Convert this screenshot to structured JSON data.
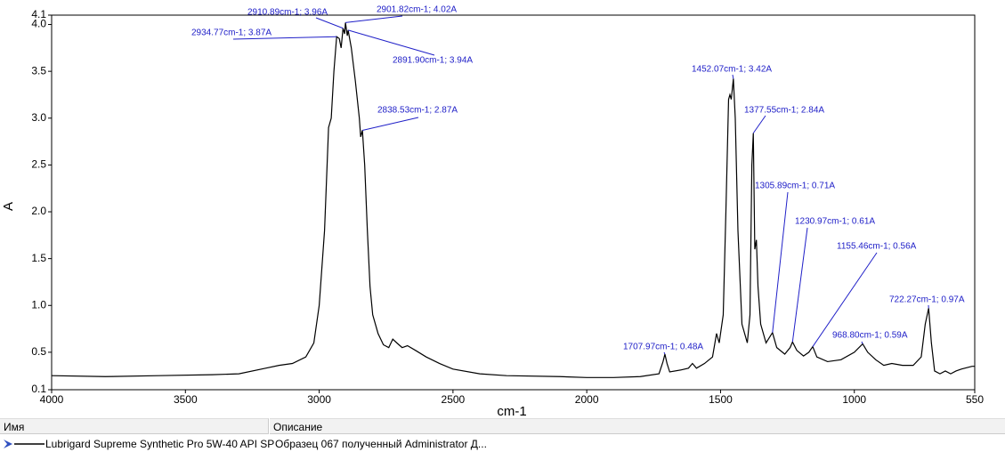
{
  "chart_data": {
    "type": "line",
    "xlabel": "cm-1",
    "ylabel": "A",
    "xlim": [
      4000,
      550
    ],
    "ylim": [
      0.1,
      4.1
    ],
    "xticks": [
      4000,
      3500,
      3000,
      2500,
      2000,
      1500,
      1000,
      550
    ],
    "yticks": [
      0.1,
      0.5,
      {
        "value": 1.0,
        "label": "1.0"
      },
      1.5,
      {
        "value": 2.0,
        "label": "2.0"
      },
      2.5,
      {
        "value": 3.0,
        "label": "3.0"
      },
      3.5,
      {
        "value": 4.0,
        "label": "4.0"
      },
      4.1
    ],
    "x": [
      4000,
      3800,
      3600,
      3400,
      3300,
      3200,
      3150,
      3100,
      3050,
      3020,
      3000,
      2980,
      2965,
      2955,
      2945,
      2934.77,
      2925,
      2918,
      2910.89,
      2905,
      2901.82,
      2895,
      2891.9,
      2880,
      2865,
      2850,
      2845,
      2838.53,
      2830,
      2820,
      2810,
      2800,
      2780,
      2760,
      2740,
      2725,
      2710,
      2690,
      2670,
      2640,
      2600,
      2550,
      2500,
      2400,
      2300,
      2100,
      2000,
      1900,
      1800,
      1730,
      1715,
      1707.97,
      1700,
      1690,
      1650,
      1620,
      1605,
      1590,
      1560,
      1530,
      1515,
      1505,
      1490,
      1480,
      1470,
      1465,
      1460,
      1452.07,
      1445,
      1435,
      1420,
      1400,
      1390,
      1383,
      1377.55,
      1372,
      1366,
      1360,
      1350,
      1330,
      1305.89,
      1290,
      1260,
      1240,
      1230.97,
      1215,
      1190,
      1170,
      1155.46,
      1140,
      1100,
      1050,
      1000,
      968.8,
      950,
      920,
      890,
      860,
      820,
      780,
      750,
      735,
      722.27,
      712,
      700,
      680,
      660,
      640,
      620,
      600,
      560,
      550
    ],
    "series": [
      {
        "name": "Lubrigard Supreme Synthetic Pro 5W-40 API SP",
        "color": "#000000",
        "values": [
          0.25,
          0.24,
          0.25,
          0.26,
          0.27,
          0.33,
          0.36,
          0.38,
          0.45,
          0.6,
          1.0,
          1.8,
          2.9,
          3.0,
          3.5,
          3.87,
          3.85,
          3.75,
          3.96,
          3.9,
          4.02,
          3.88,
          3.94,
          3.75,
          3.4,
          3.0,
          2.8,
          2.87,
          2.5,
          1.8,
          1.2,
          0.9,
          0.7,
          0.58,
          0.55,
          0.64,
          0.6,
          0.55,
          0.57,
          0.52,
          0.45,
          0.38,
          0.32,
          0.27,
          0.25,
          0.24,
          0.23,
          0.23,
          0.24,
          0.27,
          0.4,
          0.48,
          0.38,
          0.29,
          0.31,
          0.33,
          0.38,
          0.33,
          0.38,
          0.45,
          0.7,
          0.6,
          0.9,
          2.0,
          3.2,
          3.25,
          3.2,
          3.42,
          3.0,
          1.8,
          0.8,
          0.6,
          0.9,
          2.5,
          2.84,
          1.6,
          1.7,
          1.2,
          0.8,
          0.6,
          0.71,
          0.55,
          0.48,
          0.55,
          0.61,
          0.52,
          0.46,
          0.5,
          0.56,
          0.45,
          0.4,
          0.42,
          0.5,
          0.59,
          0.5,
          0.42,
          0.36,
          0.38,
          0.36,
          0.36,
          0.45,
          0.8,
          0.97,
          0.6,
          0.3,
          0.27,
          0.3,
          0.27,
          0.3,
          0.32,
          0.35,
          0.35
        ]
      }
    ],
    "annotation_color": "#2020c8",
    "annotations": [
      {
        "x": 2910.89,
        "y": 3.96,
        "label": "2910.89cm-1; 3.96A"
      },
      {
        "x": 2901.82,
        "y": 4.02,
        "label": "2901.82cm-1; 4.02A"
      },
      {
        "x": 2934.77,
        "y": 3.87,
        "label": "2934.77cm-1; 3.87A"
      },
      {
        "x": 2891.9,
        "y": 3.94,
        "label": "2891.90cm-1; 3.94A"
      },
      {
        "x": 2838.53,
        "y": 2.87,
        "label": "2838.53cm-1; 2.87A"
      },
      {
        "x": 1452.07,
        "y": 3.42,
        "label": "1452.07cm-1; 3.42A"
      },
      {
        "x": 1377.55,
        "y": 2.84,
        "label": "1377.55cm-1; 2.84A"
      },
      {
        "x": 1305.89,
        "y": 0.71,
        "label": "1305.89cm-1; 0.71A"
      },
      {
        "x": 1230.97,
        "y": 0.61,
        "label": "1230.97cm-1; 0.61A"
      },
      {
        "x": 1155.46,
        "y": 0.56,
        "label": "1155.46cm-1; 0.56A"
      },
      {
        "x": 968.8,
        "y": 0.59,
        "label": "968.80cm-1; 0.59A"
      },
      {
        "x": 722.27,
        "y": 0.97,
        "label": "722.27cm-1; 0.97A"
      },
      {
        "x": 1707.97,
        "y": 0.48,
        "label": "1707.97cm-1; 0.48A"
      }
    ]
  },
  "table": {
    "headers": [
      "Имя",
      "Описание"
    ],
    "description": "Образец 067 полученный Administrator Д..."
  }
}
